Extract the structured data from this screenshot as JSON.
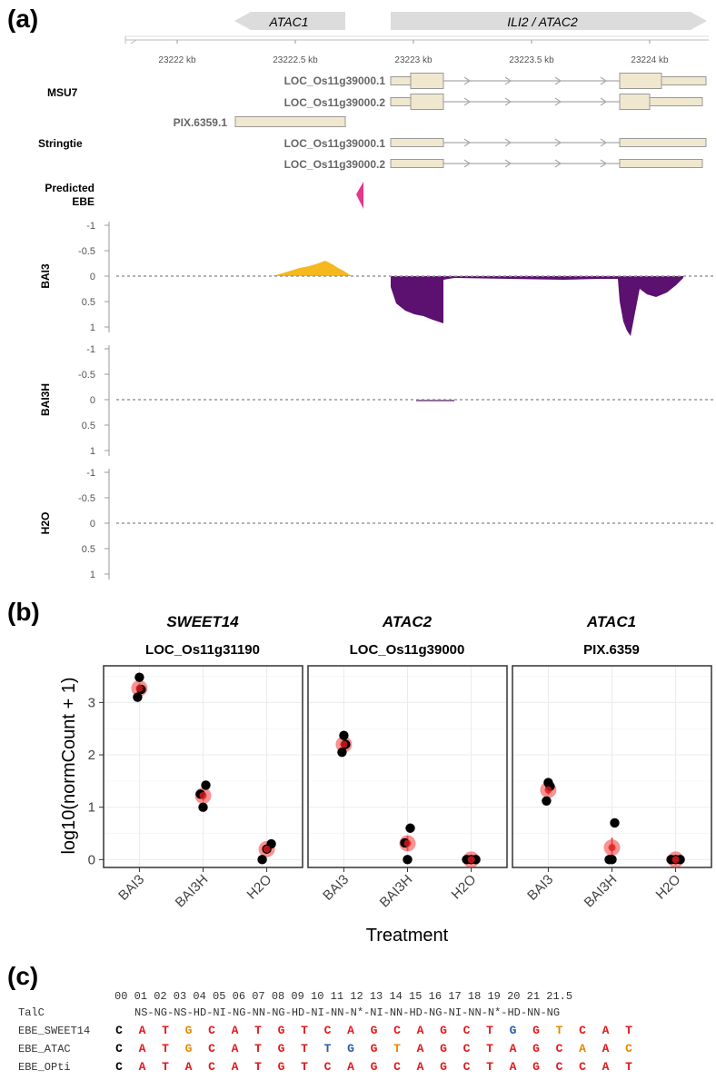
{
  "panel_a": {
    "letter": "(a)",
    "gene_arrows": [
      "ATAC1",
      "ILI2 / ATAC2"
    ],
    "coord_ticks": [
      "23222 kb",
      "23222.5 kb",
      "23223 kb",
      "23223.5 kb",
      "23224 kb"
    ],
    "tracks": {
      "msu7": "MSU7",
      "stringtie": "Stringtie",
      "ebe": [
        "Predicted",
        "EBE"
      ]
    },
    "transcripts": {
      "msu7_1": "LOC_Os11g39000.1",
      "msu7_2": "LOC_Os11g39000.2",
      "pix": "PIX.6359.1",
      "st_1": "LOC_Os11g39000.1",
      "st_2": "LOC_Os11g39000.2"
    },
    "coverage_tracks": [
      "BAI3",
      "BAI3H",
      "H2O"
    ],
    "coverage_ticks": [
      "-1",
      "-0.5",
      "0",
      "0.5",
      "1"
    ],
    "colors": {
      "plus_strand": "#f5b81e",
      "minus_strand": "#5c1070",
      "exon": "#efe8cf",
      "ebe": "#e8368a"
    }
  },
  "panel_b": {
    "letter": "(b)",
    "facets": [
      {
        "gene": "SWEET14",
        "locus": "LOC_Os11g31190"
      },
      {
        "gene": "ATAC2",
        "locus": "LOC_Os11g39000"
      },
      {
        "gene": "ATAC1",
        "locus": "PIX.6359"
      }
    ],
    "y_ticks": [
      "0",
      "1",
      "2",
      "3"
    ]
  },
  "chart_data": {
    "type": "scatter",
    "xlabel": "Treatment",
    "ylabel": "log10(normCount + 1)",
    "categories": [
      "BAI3",
      "BAI3H",
      "H2O"
    ],
    "ylim": [
      -0.15,
      3.7
    ],
    "grid": true,
    "facets": [
      {
        "title": "SWEET14 LOC_Os11g31190",
        "replicates": {
          "BAI3": [
            3.1,
            3.25,
            3.48
          ],
          "BAI3H": [
            1.0,
            1.25,
            1.42
          ],
          "H2O": [
            0.0,
            0.2,
            0.3
          ]
        },
        "mean": [
          3.27,
          1.22,
          0.2
        ]
      },
      {
        "title": "ATAC2 LOC_Os11g39000",
        "replicates": {
          "BAI3": [
            2.05,
            2.2,
            2.37
          ],
          "BAI3H": [
            0.0,
            0.32,
            0.6
          ],
          "H2O": [
            0.0,
            0.0,
            0.0
          ]
        },
        "mean": [
          2.2,
          0.31,
          0.0
        ]
      },
      {
        "title": "ATAC1 PIX.6359",
        "replicates": {
          "BAI3": [
            1.12,
            1.4,
            1.47
          ],
          "BAI3H": [
            0.0,
            0.0,
            0.7
          ],
          "H2O": [
            0.0,
            0.0,
            0.0
          ]
        },
        "mean": [
          1.33,
          0.23,
          0.0
        ]
      }
    ]
  },
  "panel_c": {
    "letter": "(c)",
    "positions": "00 01 02 03 04 05 06 07 08 09 10 11 12 13 14 15 16 17 18 19 20 21 21.5",
    "talc_label": "TalC",
    "talc_rvds": "NS-NG-NS-HD-NI-NG-NN-NG-HD-NI-NN-N*-NI-NN-HD-NG-NI-NN-N*-HD-NN-NG",
    "rows": [
      {
        "name": "EBE_SWEET14",
        "bases": [
          "C",
          "A",
          "T",
          "G",
          "C",
          "A",
          "T",
          "G",
          "T",
          "C",
          "A",
          "G",
          "C",
          "A",
          "G",
          "C",
          "T",
          "G",
          "G",
          "T",
          "C",
          "A",
          "T"
        ]
      },
      {
        "name": "EBE_ATAC",
        "bases": [
          "C",
          "A",
          "T",
          "G",
          "C",
          "A",
          "T",
          "G",
          "T",
          "T",
          "G",
          "G",
          "T",
          "A",
          "G",
          "C",
          "T",
          "A",
          "G",
          "C",
          "A",
          "A",
          "C"
        ]
      },
      {
        "name": "EBE_OPti",
        "bases": [
          "C",
          "A",
          "T",
          "A",
          "C",
          "A",
          "T",
          "G",
          "T",
          "C",
          "A",
          "G",
          "C",
          "A",
          "G",
          "C",
          "T",
          "A",
          "G",
          "C",
          "C",
          "A",
          "T"
        ]
      }
    ],
    "base_colors": {
      "EBE_SWEET14": [
        "#000",
        "#e31a1c",
        "#e31a1c",
        "#e68a00",
        "#e31a1c",
        "#e31a1c",
        "#e31a1c",
        "#e31a1c",
        "#e31a1c",
        "#e31a1c",
        "#e31a1c",
        "#e31a1c",
        "#e31a1c",
        "#e31a1c",
        "#e31a1c",
        "#e31a1c",
        "#e31a1c",
        "#2a5da8",
        "#e31a1c",
        "#e68a00",
        "#e31a1c",
        "#e31a1c",
        "#e31a1c"
      ],
      "EBE_ATAC": [
        "#000",
        "#e31a1c",
        "#e31a1c",
        "#e68a00",
        "#e31a1c",
        "#e31a1c",
        "#e31a1c",
        "#e31a1c",
        "#e31a1c",
        "#2a5da8",
        "#2a5da8",
        "#e31a1c",
        "#e68a00",
        "#e31a1c",
        "#e31a1c",
        "#e31a1c",
        "#e31a1c",
        "#e31a1c",
        "#e31a1c",
        "#e31a1c",
        "#e68a00",
        "#e31a1c",
        "#e68a00"
      ],
      "EBE_OPti": [
        "#000",
        "#e31a1c",
        "#e31a1c",
        "#e31a1c",
        "#e31a1c",
        "#e31a1c",
        "#e31a1c",
        "#e31a1c",
        "#e31a1c",
        "#e31a1c",
        "#e31a1c",
        "#e31a1c",
        "#e31a1c",
        "#e31a1c",
        "#e31a1c",
        "#e31a1c",
        "#e31a1c",
        "#e31a1c",
        "#e31a1c",
        "#e31a1c",
        "#e31a1c",
        "#e31a1c",
        "#e31a1c"
      ]
    }
  }
}
